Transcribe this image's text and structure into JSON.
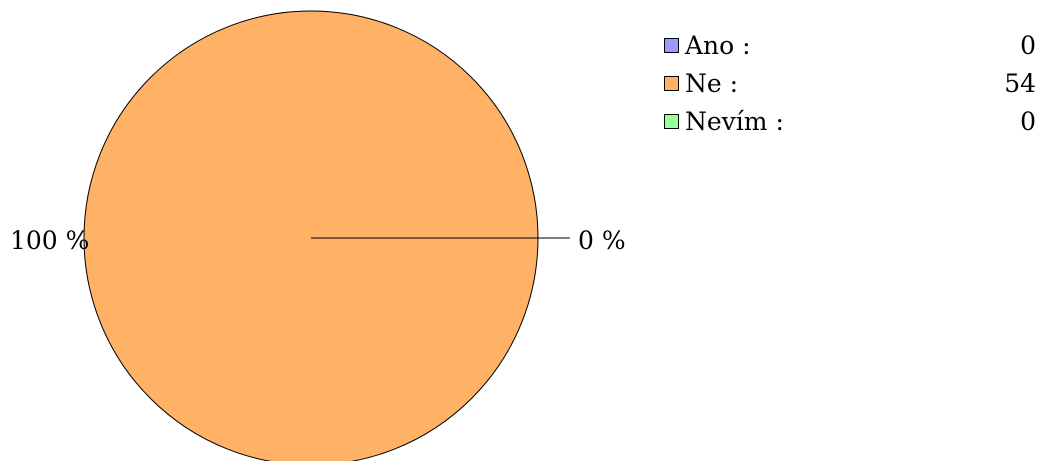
{
  "chart_data": {
    "type": "pie",
    "categories": [
      "Ano",
      "Ne",
      "Nevím"
    ],
    "values": [
      0,
      54,
      0
    ],
    "colors": [
      "#9999ff",
      "#ffb266",
      "#99ff99"
    ],
    "slice_labels": [
      "0 %",
      "100 %",
      "0 %"
    ],
    "legend": {
      "placement": "top-right",
      "items": [
        {
          "label": "Ano :",
          "value": "0",
          "color": "#9999ff"
        },
        {
          "label": "Ne :",
          "value": "54",
          "color": "#ffb266"
        },
        {
          "label": "Nevím :",
          "value": "0",
          "color": "#99ff99"
        }
      ]
    }
  }
}
